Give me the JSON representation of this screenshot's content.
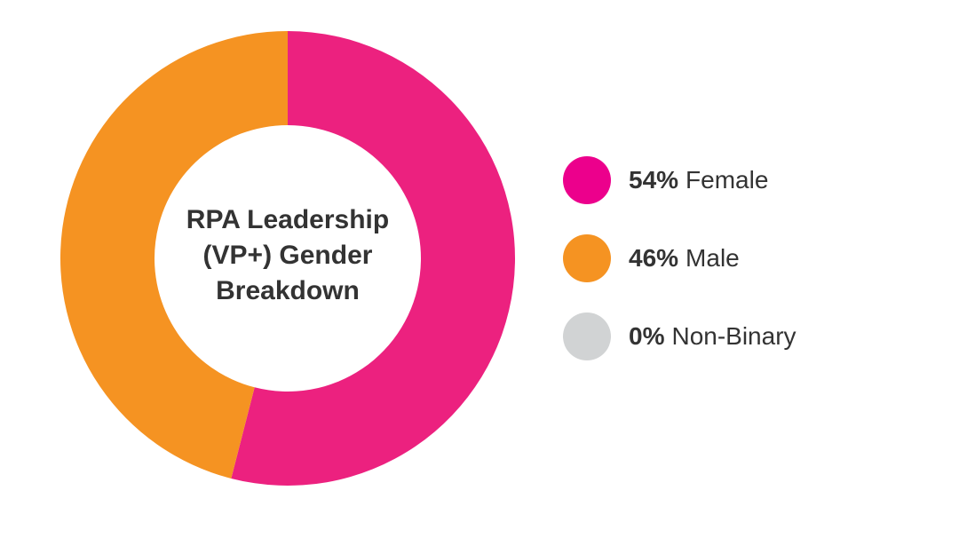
{
  "chart_data": {
    "type": "pie",
    "style": "donut",
    "title_lines": [
      "RPA Leadership",
      "(VP+) Gender",
      "Breakdown"
    ],
    "categories": [
      "Female",
      "Male",
      "Non-Binary"
    ],
    "values": [
      54,
      46,
      0
    ],
    "colors": [
      "#ec217f",
      "#f59322",
      "#d1d3d4"
    ],
    "legend_swatch_colors": [
      "#ec008c",
      "#f59322",
      "#d1d3d4"
    ],
    "legend": [
      {
        "pct": "54%",
        "label": "Female"
      },
      {
        "pct": "46%",
        "label": "Male"
      },
      {
        "pct": "0%",
        "label": "Non-Binary"
      }
    ],
    "legend_placement": "right"
  }
}
